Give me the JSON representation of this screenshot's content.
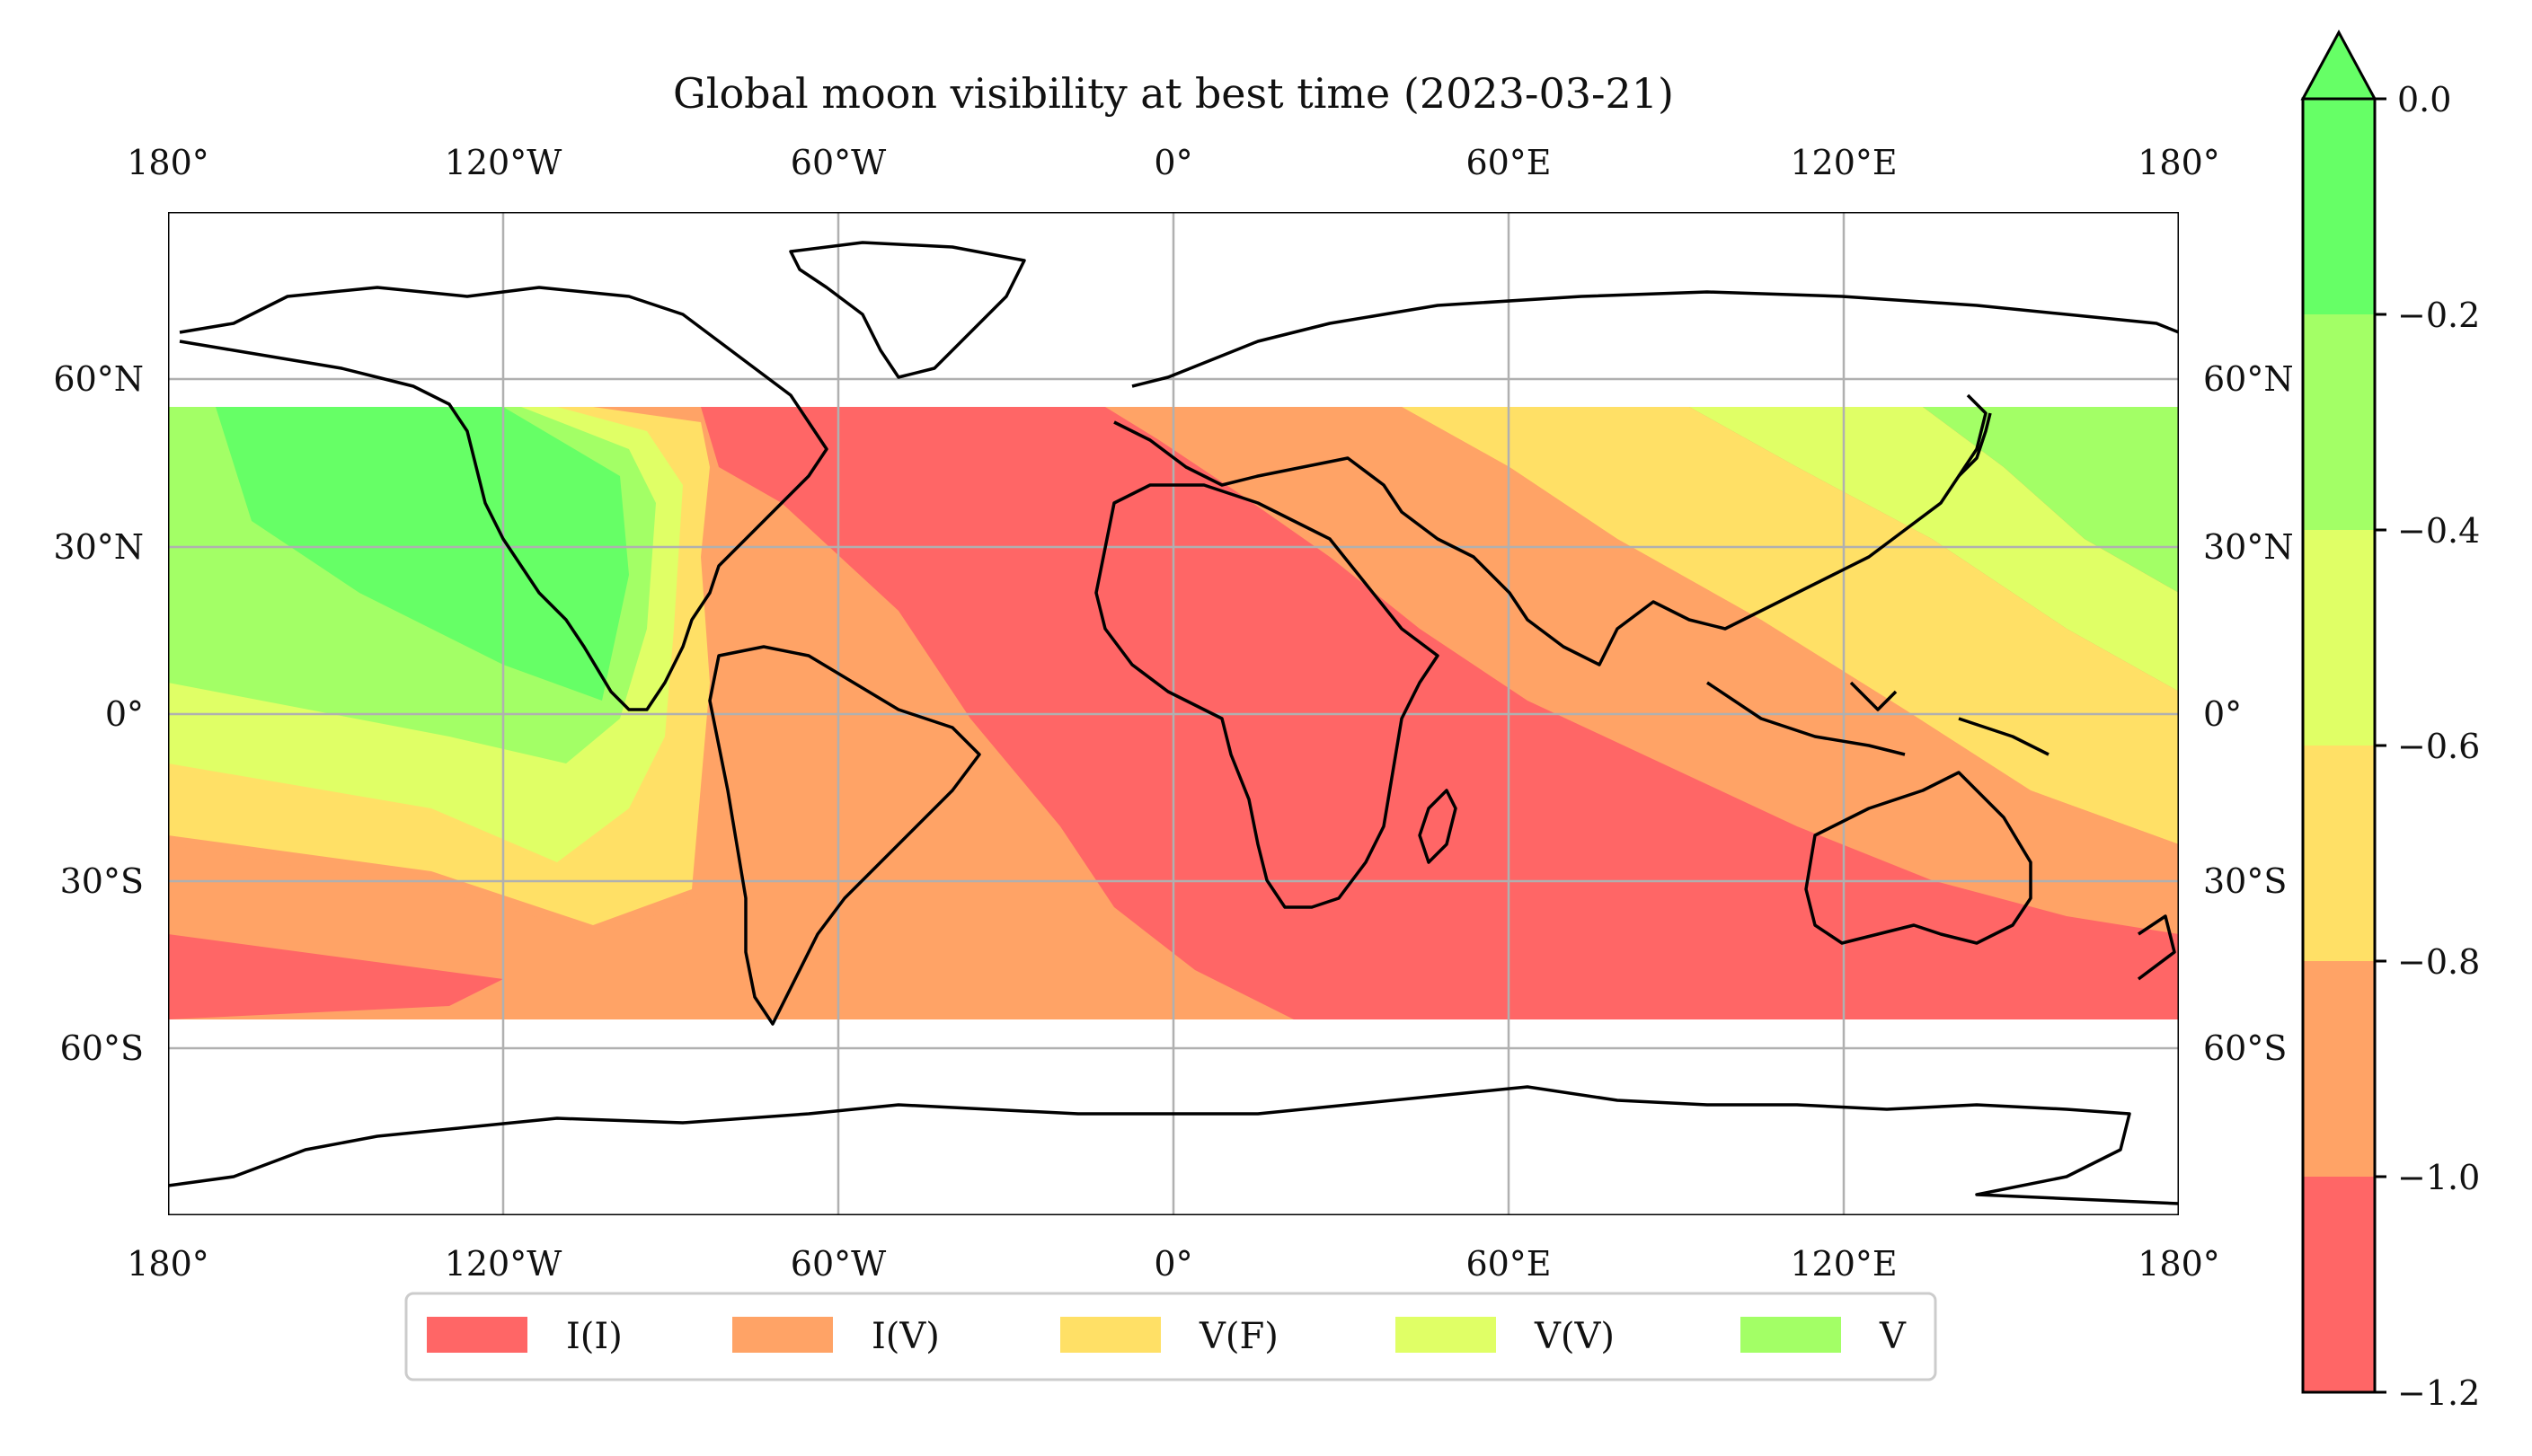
{
  "title": "Global moon visibility at best time (2023-03-21)",
  "axes": {
    "lon_ticks": [
      "180°",
      "120°W",
      "60°W",
      "0°",
      "60°E",
      "120°E",
      "180°"
    ],
    "lat_ticks": [
      "60°N",
      "30°N",
      "0°",
      "30°S",
      "60°S"
    ]
  },
  "legend": [
    {
      "label": "I(I)",
      "color": "#ff6666"
    },
    {
      "label": "I(V)",
      "color": "#ffa366"
    },
    {
      "label": "V(F)",
      "color": "#ffe066"
    },
    {
      "label": "V(V)",
      "color": "#e0ff66"
    },
    {
      "label": "V",
      "color": "#a3ff66"
    }
  ],
  "colorbar": {
    "ticks": [
      "0.0",
      "−0.2",
      "−0.4",
      "−0.6",
      "−0.8",
      "−1.0",
      "−1.2"
    ],
    "range": [
      -1.2,
      0.0
    ],
    "extend": "max",
    "levels": [
      {
        "from": -1.2,
        "to": -1.0,
        "color": "#ff6666"
      },
      {
        "from": -1.0,
        "to": -0.8,
        "color": "#ffa366"
      },
      {
        "from": -0.8,
        "to": -0.6,
        "color": "#ffe066"
      },
      {
        "from": -0.6,
        "to": -0.4,
        "color": "#e0ff66"
      },
      {
        "from": -0.4,
        "to": -0.2,
        "color": "#a3ff66"
      },
      {
        "from": -0.2,
        "to": 0.0,
        "color": "#66ff66"
      }
    ]
  },
  "map": {
    "data_lat_range": [
      -55,
      55
    ],
    "lon_range": [
      -180,
      180
    ],
    "lat_range": [
      -90,
      90
    ],
    "gridlines": true
  }
}
